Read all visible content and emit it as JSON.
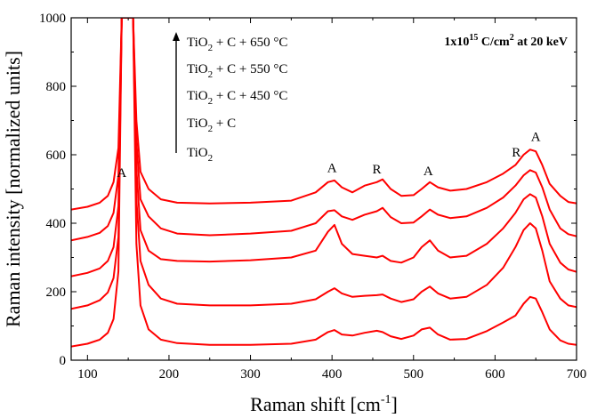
{
  "chart_data": {
    "type": "line",
    "title": "",
    "xlabel": "Raman shift [cm",
    "xlabel_sup": "-1",
    "xlabel_end": "]",
    "ylabel": "Raman intensity [normalized units]",
    "xlim": [
      80,
      700
    ],
    "ylim": [
      0,
      1000
    ],
    "x_ticks": [
      100,
      200,
      300,
      400,
      500,
      600,
      700
    ],
    "y_ticks": [
      0,
      200,
      400,
      600,
      800,
      1000
    ],
    "grid": false,
    "line_color": "#ff0000",
    "condition_label": {
      "prefix": "1x10",
      "exp": "15",
      "mid": " C/cm",
      "exp2": "2",
      "suffix": " at 20 keV"
    },
    "legend_order": "top-to-bottom list with upward arrow, matching curves from top to bottom",
    "legend_entries": [
      {
        "base": "TiO",
        "sub": "2",
        "rest": " + C + 650 °C"
      },
      {
        "base": "TiO",
        "sub": "2",
        "rest": " + C + 550 °C"
      },
      {
        "base": "TiO",
        "sub": "2",
        "rest": " + C + 450 °C"
      },
      {
        "base": "TiO",
        "sub": "2",
        "rest": " + C"
      },
      {
        "base": "TiO",
        "sub": "2",
        "rest": ""
      }
    ],
    "peak_annotations": [
      {
        "text": "A",
        "x": 142,
        "y": 535
      },
      {
        "text": "A",
        "x": 400,
        "y": 550
      },
      {
        "text": "R",
        "x": 455,
        "y": 545
      },
      {
        "text": "A",
        "x": 518,
        "y": 540
      },
      {
        "text": "R",
        "x": 626,
        "y": 595
      },
      {
        "text": "A",
        "x": 650,
        "y": 640
      }
    ],
    "series": [
      {
        "x": [
          80,
          100,
          115,
          125,
          132,
          138,
          142,
          145,
          148,
          152,
          156,
          160,
          165,
          175,
          190,
          210,
          250,
          300,
          350,
          380,
          395,
          403,
          412,
          425,
          440,
          455,
          462,
          472,
          485,
          500,
          510,
          520,
          530,
          545,
          565,
          590,
          610,
          625,
          635,
          643,
          650,
          658,
          667,
          680,
          690,
          700
        ],
        "y": [
          440,
          448,
          460,
          480,
          520,
          620,
          1000,
          1000,
          1000,
          1000,
          1000,
          700,
          550,
          500,
          470,
          460,
          458,
          460,
          466,
          490,
          520,
          525,
          505,
          490,
          510,
          520,
          528,
          500,
          480,
          482,
          500,
          520,
          505,
          495,
          500,
          520,
          545,
          570,
          600,
          615,
          610,
          570,
          515,
          480,
          462,
          458
        ]
      },
      {
        "x": [
          80,
          100,
          115,
          125,
          132,
          138,
          142,
          145,
          148,
          152,
          156,
          160,
          165,
          175,
          190,
          210,
          250,
          300,
          350,
          380,
          395,
          403,
          412,
          425,
          440,
          455,
          462,
          472,
          485,
          500,
          510,
          520,
          530,
          545,
          565,
          590,
          610,
          625,
          635,
          643,
          650,
          658,
          667,
          680,
          690,
          700
        ],
        "y": [
          350,
          360,
          372,
          392,
          430,
          540,
          1000,
          1000,
          1000,
          1000,
          1000,
          640,
          470,
          420,
          385,
          370,
          365,
          370,
          378,
          400,
          435,
          438,
          420,
          410,
          425,
          435,
          445,
          418,
          400,
          402,
          420,
          440,
          425,
          415,
          420,
          445,
          475,
          510,
          540,
          555,
          548,
          505,
          440,
          385,
          368,
          362
        ]
      },
      {
        "x": [
          80,
          100,
          115,
          125,
          132,
          138,
          142,
          145,
          148,
          152,
          156,
          160,
          165,
          175,
          190,
          210,
          250,
          300,
          350,
          380,
          395,
          403,
          412,
          425,
          440,
          455,
          462,
          472,
          485,
          500,
          510,
          520,
          530,
          545,
          565,
          590,
          610,
          625,
          635,
          643,
          650,
          658,
          667,
          680,
          690,
          700
        ],
        "y": [
          245,
          255,
          268,
          290,
          330,
          450,
          1000,
          1000,
          1000,
          1000,
          1000,
          560,
          380,
          320,
          295,
          290,
          288,
          292,
          300,
          320,
          375,
          395,
          340,
          310,
          305,
          300,
          305,
          290,
          285,
          300,
          330,
          350,
          320,
          300,
          305,
          340,
          385,
          430,
          470,
          485,
          475,
          420,
          340,
          285,
          265,
          258
        ]
      },
      {
        "x": [
          80,
          100,
          115,
          125,
          132,
          138,
          142,
          145,
          148,
          152,
          156,
          160,
          165,
          175,
          190,
          210,
          250,
          300,
          350,
          380,
          395,
          403,
          412,
          425,
          440,
          455,
          462,
          472,
          485,
          500,
          510,
          520,
          530,
          545,
          565,
          590,
          610,
          625,
          635,
          643,
          650,
          658,
          667,
          680,
          690,
          700
        ],
        "y": [
          150,
          160,
          175,
          198,
          240,
          360,
          1000,
          1000,
          1000,
          1000,
          1000,
          470,
          290,
          220,
          180,
          165,
          160,
          160,
          165,
          178,
          200,
          210,
          195,
          185,
          188,
          190,
          192,
          180,
          170,
          178,
          200,
          215,
          195,
          180,
          185,
          220,
          270,
          330,
          380,
          400,
          385,
          320,
          230,
          180,
          160,
          155
        ]
      },
      {
        "x": [
          80,
          100,
          115,
          125,
          132,
          138,
          142,
          145,
          148,
          152,
          156,
          160,
          165,
          175,
          190,
          210,
          250,
          300,
          350,
          380,
          395,
          403,
          412,
          425,
          440,
          455,
          462,
          472,
          485,
          500,
          510,
          520,
          530,
          545,
          565,
          590,
          610,
          625,
          635,
          643,
          650,
          658,
          667,
          680,
          690,
          700
        ],
        "y": [
          40,
          48,
          60,
          80,
          120,
          260,
          1000,
          1000,
          1000,
          1000,
          1000,
          340,
          160,
          90,
          60,
          50,
          45,
          45,
          48,
          60,
          82,
          88,
          75,
          72,
          80,
          86,
          82,
          70,
          62,
          72,
          90,
          95,
          75,
          60,
          62,
          85,
          110,
          130,
          165,
          185,
          180,
          140,
          90,
          58,
          48,
          45
        ]
      }
    ]
  }
}
